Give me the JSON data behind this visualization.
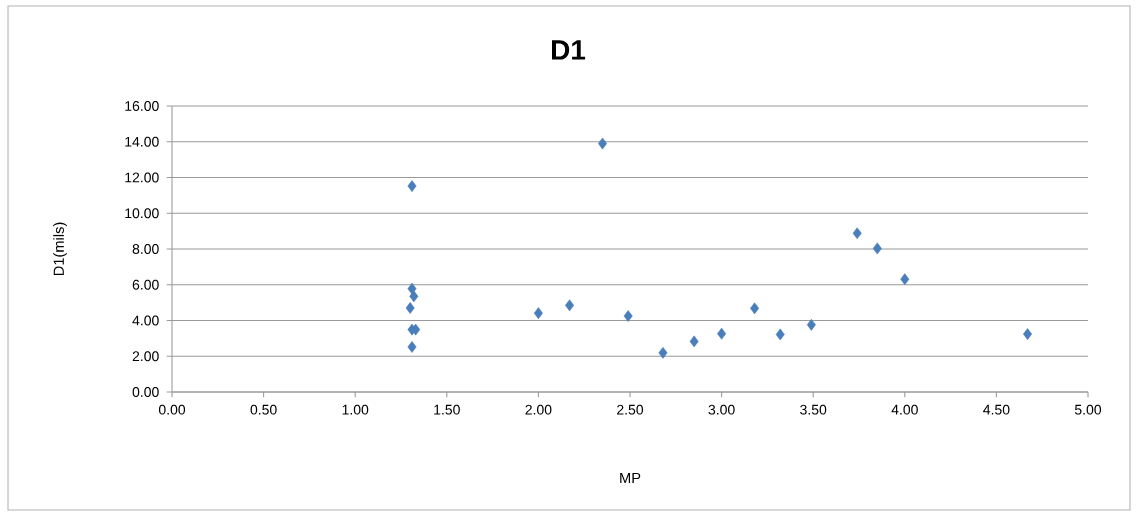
{
  "chart_data": {
    "type": "scatter",
    "title": "D1",
    "xlabel": "MP",
    "ylabel": "D1(mils)",
    "series": [
      {
        "color": "#4a7ebb",
        "x": [
          1.31,
          1.31,
          1.32,
          1.3,
          1.31,
          1.33,
          1.31,
          2.0,
          2.17,
          2.35,
          2.49,
          2.68,
          2.85,
          3.0,
          3.18,
          3.32,
          3.49,
          3.74,
          3.85,
          4.0,
          4.67
        ],
        "values": [
          11.52,
          5.78,
          5.35,
          4.7,
          3.49,
          3.49,
          2.52,
          4.41,
          4.85,
          13.9,
          4.25,
          2.19,
          2.83,
          3.26,
          4.68,
          3.22,
          3.76,
          8.88,
          8.03,
          6.31,
          3.24
        ]
      }
    ],
    "marker": "diamond",
    "grid": "y",
    "xlim": [
      0,
      5
    ],
    "ylim": [
      0,
      16
    ],
    "xticks": [
      {
        "value": 0,
        "label": "0.00"
      },
      {
        "value": 0.5,
        "label": "0.50"
      },
      {
        "value": 1,
        "label": "1.00"
      },
      {
        "value": 1.5,
        "label": "1.50"
      },
      {
        "value": 2,
        "label": "2.00"
      },
      {
        "value": 2.5,
        "label": "2.50"
      },
      {
        "value": 3,
        "label": "3.00"
      },
      {
        "value": 3.5,
        "label": "3.50"
      },
      {
        "value": 4,
        "label": "4.00"
      },
      {
        "value": 4.5,
        "label": "4.50"
      },
      {
        "value": 5,
        "label": "5.00"
      }
    ],
    "yticks": [
      {
        "value": 0,
        "label": "0.00"
      },
      {
        "value": 2,
        "label": "2.00"
      },
      {
        "value": 4,
        "label": "4.00"
      },
      {
        "value": 6,
        "label": "6.00"
      },
      {
        "value": 8,
        "label": "8.00"
      },
      {
        "value": 10,
        "label": "10.00"
      },
      {
        "value": 12,
        "label": "12.00"
      },
      {
        "value": 14,
        "label": "14.00"
      },
      {
        "value": 16,
        "label": "16.00"
      }
    ]
  }
}
